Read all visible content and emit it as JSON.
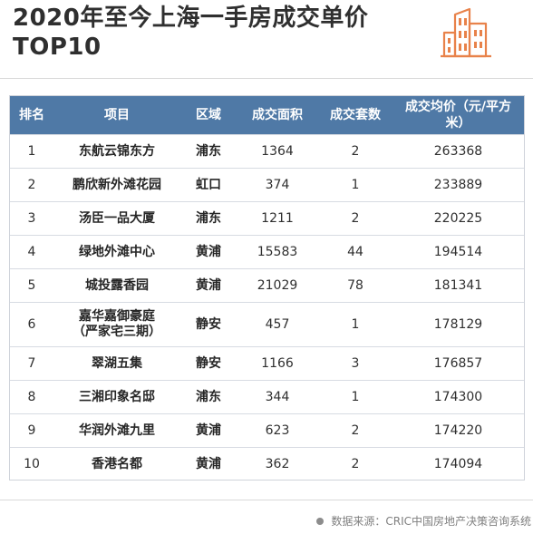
{
  "title": {
    "line1": "2020年至今上海一手房成交单价",
    "line2": "TOP10"
  },
  "icon": "building-icon",
  "accent_color": "#e8824a",
  "header_color": "#4f79a6",
  "table": {
    "headers": [
      "排名",
      "项目",
      "区域",
      "成交面积",
      "成交套数",
      "成交均价（元/平方米）"
    ],
    "rows": [
      {
        "rank": "1",
        "name": "东航云锦东方",
        "name2": "",
        "district": "浦东",
        "area": "1364",
        "units": "2",
        "price": "263368"
      },
      {
        "rank": "2",
        "name": "鹏欣新外滩花园",
        "name2": "",
        "district": "虹口",
        "area": "374",
        "units": "1",
        "price": "233889"
      },
      {
        "rank": "3",
        "name": "汤臣一品大厦",
        "name2": "",
        "district": "浦东",
        "area": "1211",
        "units": "2",
        "price": "220225"
      },
      {
        "rank": "4",
        "name": "绿地外滩中心",
        "name2": "",
        "district": "黄浦",
        "area": "15583",
        "units": "44",
        "price": "194514"
      },
      {
        "rank": "5",
        "name": "城投露香园",
        "name2": "",
        "district": "黄浦",
        "area": "21029",
        "units": "78",
        "price": "181341"
      },
      {
        "rank": "6",
        "name": "嘉华嘉御豪庭",
        "name2": "（严家宅三期）",
        "district": "静安",
        "area": "457",
        "units": "1",
        "price": "178129"
      },
      {
        "rank": "7",
        "name": "翠湖五集",
        "name2": "",
        "district": "静安",
        "area": "1166",
        "units": "3",
        "price": "176857"
      },
      {
        "rank": "8",
        "name": "三湘印象名邸",
        "name2": "",
        "district": "浦东",
        "area": "344",
        "units": "1",
        "price": "174300"
      },
      {
        "rank": "9",
        "name": "华润外滩九里",
        "name2": "",
        "district": "黄浦",
        "area": "623",
        "units": "2",
        "price": "174220"
      },
      {
        "rank": "10",
        "name": "香港名都",
        "name2": "",
        "district": "黄浦",
        "area": "362",
        "units": "2",
        "price": "174094"
      }
    ]
  },
  "footer": {
    "source": "数据来源：CRIC中国房地产决策咨询系统"
  }
}
